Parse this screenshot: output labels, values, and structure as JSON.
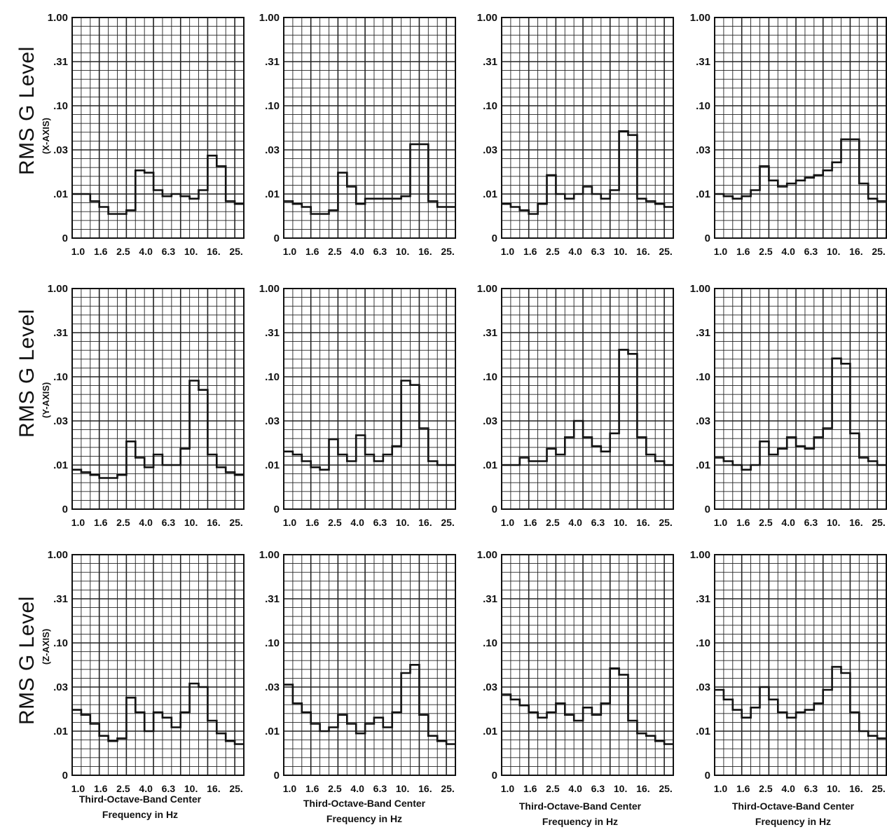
{
  "figure": {
    "row_labels": [
      {
        "main": "RMS G Level",
        "sub": "(X-AXIS)"
      },
      {
        "main": "RMS G Level",
        "sub": "(Y-AXIS)"
      },
      {
        "main": "RMS G Level",
        "sub": "(Z-AXIS)"
      }
    ],
    "xlabel_line1": "Third-Octave-Band Center",
    "xlabel_line2": "Frequency in Hz",
    "colors": {
      "line": "#111111",
      "grid": "#222222",
      "background": "#ffffff"
    }
  },
  "chart_data": [
    {
      "type": "line",
      "step": true,
      "row": "X-AXIS",
      "column": 1,
      "x_ticks": [
        "1.0",
        "1.6",
        "2.5",
        "4.0",
        "6.3",
        "10.",
        "16.",
        "25."
      ],
      "y_ticks": [
        "0",
        ".01",
        ".03",
        ".10",
        ".31",
        "1.00"
      ],
      "values": [
        0.01,
        0.01,
        0.007,
        0.005,
        0.003,
        0.003,
        0.004,
        0.018,
        0.017,
        0.011,
        0.009,
        0.01,
        0.009,
        0.008,
        0.011,
        0.026,
        0.02,
        0.007,
        0.006
      ]
    },
    {
      "type": "line",
      "step": true,
      "row": "X-AXIS",
      "column": 2,
      "x_ticks": [
        "1.0",
        "1.6",
        "2.5",
        "4.0",
        "6.3",
        "10.",
        "16.",
        "25."
      ],
      "y_ticks": [
        "0",
        ".01",
        ".03",
        ".10",
        ".31",
        "1.00"
      ],
      "values": [
        0.007,
        0.006,
        0.005,
        0.003,
        0.003,
        0.004,
        0.017,
        0.012,
        0.006,
        0.008,
        0.008,
        0.008,
        0.008,
        0.009,
        0.035,
        0.035,
        0.007,
        0.005,
        0.005
      ]
    },
    {
      "type": "line",
      "step": true,
      "row": "X-AXIS",
      "column": 3,
      "x_ticks": [
        "1.0",
        "1.6",
        "2.5",
        "4.0",
        "6.3",
        "10.",
        "16.",
        "25."
      ],
      "y_ticks": [
        "0",
        ".01",
        ".03",
        ".10",
        ".31",
        "1.00"
      ],
      "values": [
        0.006,
        0.005,
        0.004,
        0.003,
        0.006,
        0.016,
        0.01,
        0.008,
        0.01,
        0.012,
        0.01,
        0.008,
        0.011,
        0.05,
        0.045,
        0.008,
        0.007,
        0.006,
        0.005
      ]
    },
    {
      "type": "line",
      "step": true,
      "row": "X-AXIS",
      "column": 4,
      "x_ticks": [
        "1.0",
        "1.6",
        "2.5",
        "4.0",
        "6.3",
        "10.",
        "16.",
        "25."
      ],
      "y_ticks": [
        "0",
        ".01",
        ".03",
        ".10",
        ".31",
        "1.00"
      ],
      "values": [
        0.01,
        0.009,
        0.008,
        0.009,
        0.011,
        0.02,
        0.014,
        0.012,
        0.013,
        0.014,
        0.015,
        0.016,
        0.018,
        0.022,
        0.04,
        0.04,
        0.013,
        0.008,
        0.007
      ]
    },
    {
      "type": "line",
      "step": true,
      "row": "Y-AXIS",
      "column": 1,
      "x_ticks": [
        "1.0",
        "1.6",
        "2.5",
        "4.0",
        "6.3",
        "10.",
        "16.",
        "25."
      ],
      "y_ticks": [
        "0",
        ".01",
        ".03",
        ".10",
        ".31",
        "1.00"
      ],
      "values": [
        0.008,
        0.007,
        0.006,
        0.005,
        0.005,
        0.006,
        0.018,
        0.012,
        0.009,
        0.013,
        0.01,
        0.01,
        0.015,
        0.09,
        0.07,
        0.013,
        0.009,
        0.007,
        0.006
      ]
    },
    {
      "type": "line",
      "step": true,
      "row": "Y-AXIS",
      "column": 2,
      "x_ticks": [
        "1.0",
        "1.6",
        "2.5",
        "4.0",
        "6.3",
        "10.",
        "16.",
        "25."
      ],
      "y_ticks": [
        "0",
        ".01",
        ".03",
        ".10",
        ".31",
        "1.00"
      ],
      "values": [
        0.014,
        0.013,
        0.011,
        0.009,
        0.008,
        0.019,
        0.013,
        0.011,
        0.021,
        0.013,
        0.011,
        0.013,
        0.016,
        0.09,
        0.08,
        0.025,
        0.011,
        0.01,
        0.01
      ]
    },
    {
      "type": "line",
      "step": true,
      "row": "Y-AXIS",
      "column": 3,
      "x_ticks": [
        "1.0",
        "1.6",
        "2.5",
        "4.0",
        "6.3",
        "10.",
        "16.",
        "25."
      ],
      "y_ticks": [
        "0",
        ".01",
        ".03",
        ".10",
        ".31",
        "1.00"
      ],
      "values": [
        0.01,
        0.01,
        0.012,
        0.011,
        0.011,
        0.015,
        0.013,
        0.02,
        0.03,
        0.02,
        0.016,
        0.014,
        0.022,
        0.2,
        0.18,
        0.02,
        0.013,
        0.011,
        0.01
      ]
    },
    {
      "type": "line",
      "step": true,
      "row": "Y-AXIS",
      "column": 4,
      "x_ticks": [
        "1.0",
        "1.6",
        "2.5",
        "4.0",
        "6.3",
        "10.",
        "16.",
        "25."
      ],
      "y_ticks": [
        "0",
        ".01",
        ".03",
        ".10",
        ".31",
        "1.00"
      ],
      "values": [
        0.012,
        0.011,
        0.01,
        0.008,
        0.01,
        0.018,
        0.013,
        0.015,
        0.02,
        0.016,
        0.015,
        0.02,
        0.025,
        0.16,
        0.14,
        0.022,
        0.012,
        0.011,
        0.01
      ]
    },
    {
      "type": "line",
      "step": true,
      "row": "Z-AXIS",
      "column": 1,
      "x_ticks": [
        "1.0",
        "1.6",
        "2.5",
        "4.0",
        "6.3",
        "10.",
        "16.",
        "25."
      ],
      "y_ticks": [
        "0",
        ".01",
        ".03",
        ".10",
        ".31",
        "1.00"
      ],
      "values": [
        0.017,
        0.015,
        0.012,
        0.008,
        0.006,
        0.007,
        0.023,
        0.016,
        0.01,
        0.016,
        0.014,
        0.011,
        0.016,
        0.033,
        0.03,
        0.013,
        0.009,
        0.006,
        0.005
      ]
    },
    {
      "type": "line",
      "step": true,
      "row": "Z-AXIS",
      "column": 2,
      "x_ticks": [
        "1.0",
        "1.6",
        "2.5",
        "4.0",
        "6.3",
        "10.",
        "16.",
        "25."
      ],
      "y_ticks": [
        "0",
        ".01",
        ".03",
        ".10",
        ".31",
        "1.00"
      ],
      "values": [
        0.032,
        0.02,
        0.016,
        0.012,
        0.01,
        0.011,
        0.015,
        0.012,
        0.009,
        0.012,
        0.014,
        0.011,
        0.016,
        0.044,
        0.055,
        0.015,
        0.008,
        0.006,
        0.005
      ]
    },
    {
      "type": "line",
      "step": true,
      "row": "Z-AXIS",
      "column": 3,
      "x_ticks": [
        "1.0",
        "1.6",
        "2.5",
        "4.0",
        "6.3",
        "10.",
        "16.",
        "25."
      ],
      "y_ticks": [
        "0",
        ".01",
        ".03",
        ".10",
        ".31",
        "1.00"
      ],
      "values": [
        0.025,
        0.022,
        0.019,
        0.016,
        0.014,
        0.016,
        0.02,
        0.015,
        0.013,
        0.018,
        0.015,
        0.02,
        0.05,
        0.042,
        0.013,
        0.009,
        0.008,
        0.006,
        0.005
      ]
    },
    {
      "type": "line",
      "step": true,
      "row": "Z-AXIS",
      "column": 4,
      "x_ticks": [
        "1.0",
        "1.6",
        "2.5",
        "4.0",
        "6.3",
        "10.",
        "16.",
        "25."
      ],
      "y_ticks": [
        "0",
        ".01",
        ".03",
        ".10",
        ".31",
        "1.00"
      ],
      "values": [
        0.028,
        0.022,
        0.017,
        0.014,
        0.018,
        0.03,
        0.022,
        0.016,
        0.014,
        0.016,
        0.017,
        0.02,
        0.028,
        0.052,
        0.044,
        0.016,
        0.01,
        0.008,
        0.007
      ]
    }
  ]
}
